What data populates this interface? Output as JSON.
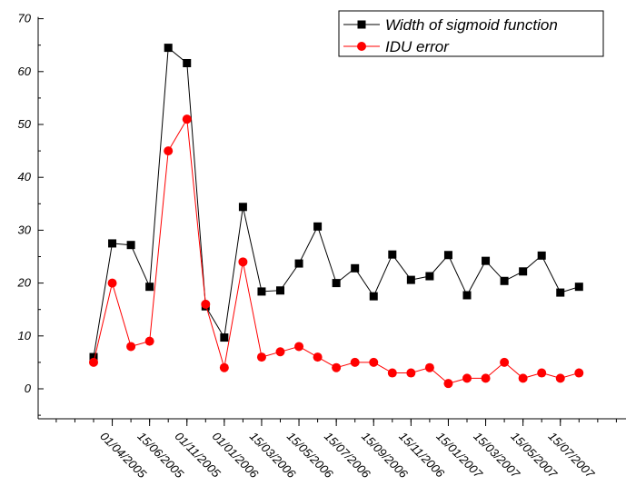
{
  "chart_data": {
    "type": "line",
    "title": "",
    "xlabel": "",
    "ylabel": "",
    "ylim": [
      -5,
      70
    ],
    "yticks": [
      0,
      10,
      20,
      30,
      40,
      50,
      60,
      70
    ],
    "x_tick_labels": [
      "01/04/2005",
      "15/06/2005",
      "01/11/2005",
      "01/01/2006",
      "15/03/2006",
      "15/05/2006",
      "15/07/2006",
      "15/09/2006",
      "15/11/2006",
      "15/01/2007",
      "15/03/2007",
      "15/05/2007",
      "15/07/2007"
    ],
    "legend_position": "top-right",
    "grid": false,
    "series": [
      {
        "name": "Width of sigmoid function",
        "color": "#000000",
        "marker": "square",
        "values": [
          6,
          27.5,
          27.2,
          19.3,
          64.5,
          61.6,
          15.6,
          9.7,
          34.4,
          18.4,
          18.6,
          23.7,
          30.7,
          20.0,
          22.8,
          17.5,
          25.4,
          20.6,
          21.3,
          25.3,
          17.7,
          24.2,
          20.4,
          22.2,
          25.2,
          18.2,
          19.3
        ]
      },
      {
        "name": "IDU error",
        "color": "#ff0000",
        "marker": "circle",
        "values": [
          5,
          20,
          8,
          9,
          45,
          51,
          16,
          4,
          24,
          6,
          7,
          8,
          6,
          4,
          5,
          5,
          3,
          3,
          4,
          1,
          2,
          2,
          5,
          2,
          3,
          2,
          3
        ]
      }
    ]
  }
}
